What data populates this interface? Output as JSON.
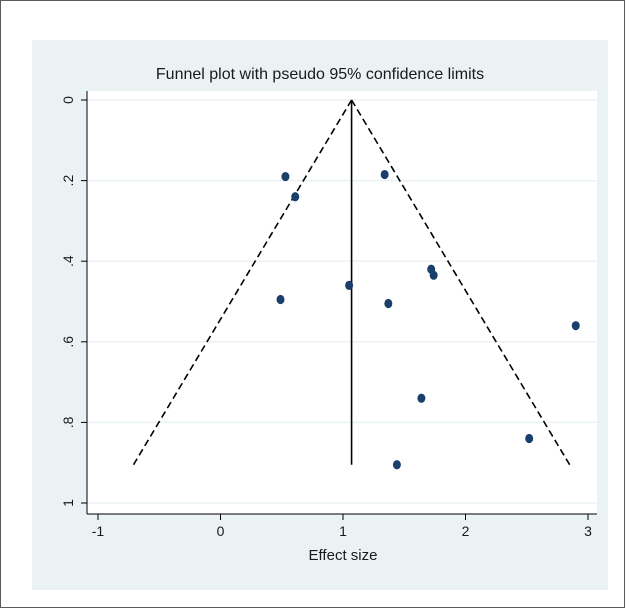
{
  "colors": {
    "background": "#eaf2f3",
    "plot_background": "#ffffff",
    "gridline": "#eaf2f3",
    "point": "#1b3f6b",
    "line": "#000000"
  },
  "chart_data": {
    "type": "scatter",
    "title": "Funnel plot with pseudo 95% confidence limits",
    "xlabel": "Effect size",
    "ylabel": "",
    "xlim": [
      -1.05,
      3.05
    ],
    "ylim": [
      0,
      1.02
    ],
    "y_axis_reversed": true,
    "xticks": [
      -1,
      0,
      1,
      2,
      3
    ],
    "xtick_labels": [
      "-1",
      "0",
      "1",
      "2",
      "3"
    ],
    "yticks": [
      0,
      0.2,
      0.4,
      0.6,
      0.8,
      1
    ],
    "ytick_labels": [
      "0",
      ".2",
      ".4",
      ".6",
      ".8",
      "1"
    ],
    "grid": true,
    "legend": "none",
    "points": [
      {
        "x": 0.53,
        "y": 0.19
      },
      {
        "x": 0.61,
        "y": 0.24
      },
      {
        "x": 1.34,
        "y": 0.185
      },
      {
        "x": 0.49,
        "y": 0.495
      },
      {
        "x": 1.05,
        "y": 0.46
      },
      {
        "x": 1.37,
        "y": 0.505
      },
      {
        "x": 1.72,
        "y": 0.42
      },
      {
        "x": 1.74,
        "y": 0.435
      },
      {
        "x": 2.9,
        "y": 0.56
      },
      {
        "x": 1.64,
        "y": 0.74
      },
      {
        "x": 2.52,
        "y": 0.84
      },
      {
        "x": 1.44,
        "y": 0.905
      }
    ],
    "pooled_effect": 1.07,
    "reference_line": {
      "x": 1.07,
      "y_from": 0,
      "y_to": 0.905
    },
    "confidence_limits": {
      "apex": {
        "x": 1.07,
        "y": 0
      },
      "left_end": {
        "x": -0.71,
        "y": 0.905
      },
      "right_end": {
        "x": 2.85,
        "y": 0.905
      }
    }
  }
}
